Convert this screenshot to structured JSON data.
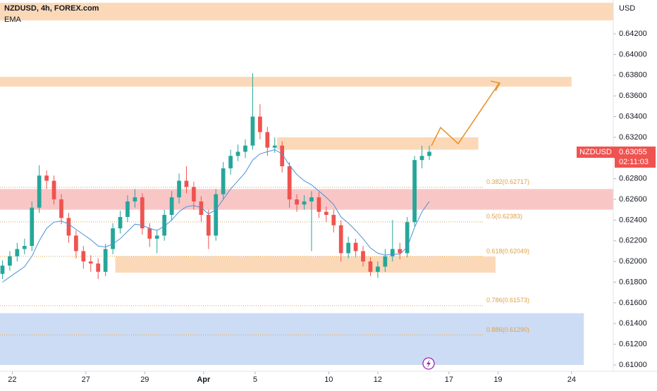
{
  "chart_data": {
    "type": "candlestick",
    "title": "NZDUSD, 4h, FOREX.com",
    "indicator": "EMA",
    "currency": "USD",
    "symbol_label": "NZDUSD",
    "last_price": 0.63055,
    "countdown": "02:11:03",
    "xlim": [
      0,
      250
    ],
    "ylim": [
      0.6095,
      0.645
    ],
    "xticks": [
      {
        "value": 5,
        "label": "22"
      },
      {
        "value": 35,
        "label": "27"
      },
      {
        "value": 59,
        "label": "29"
      },
      {
        "value": 83,
        "label": "Apr"
      },
      {
        "value": 104,
        "label": "5"
      },
      {
        "value": 134,
        "label": "10"
      },
      {
        "value": 154,
        "label": "12"
      },
      {
        "value": 183,
        "label": "17"
      },
      {
        "value": 203,
        "label": "19"
      },
      {
        "value": 233,
        "label": "24"
      }
    ],
    "yticks": [
      {
        "value": 0.61,
        "label": "0.61000"
      },
      {
        "value": 0.612,
        "label": "0.61200"
      },
      {
        "value": 0.614,
        "label": "0.61400"
      },
      {
        "value": 0.616,
        "label": "0.61600"
      },
      {
        "value": 0.618,
        "label": "0.61800"
      },
      {
        "value": 0.62,
        "label": "0.62000"
      },
      {
        "value": 0.622,
        "label": "0.62200"
      },
      {
        "value": 0.624,
        "label": "0.62400"
      },
      {
        "value": 0.626,
        "label": "0.62600"
      },
      {
        "value": 0.628,
        "label": "0.62800"
      },
      {
        "value": 0.63,
        "label": "0.63000"
      },
      {
        "value": 0.632,
        "label": "0.63200"
      },
      {
        "value": 0.634,
        "label": "0.63400"
      },
      {
        "value": 0.636,
        "label": "0.63600"
      },
      {
        "value": 0.638,
        "label": "0.63800"
      },
      {
        "value": 0.64,
        "label": "0.64000"
      },
      {
        "value": 0.642,
        "label": "0.64200"
      }
    ],
    "up_color": "#26a69a",
    "down_color": "#ef5350",
    "ema_color": "#4a90d9",
    "x": [
      1,
      4,
      7,
      10,
      13,
      16,
      19,
      22,
      25,
      28,
      31,
      34,
      37,
      40,
      43,
      46,
      49,
      52,
      55,
      58,
      61,
      64,
      67,
      70,
      73,
      76,
      79,
      82,
      85,
      88,
      91,
      94,
      97,
      100,
      103,
      106,
      109,
      112,
      115,
      118,
      121,
      124,
      127,
      130,
      133,
      136,
      139,
      142,
      145,
      148,
      151,
      154,
      157,
      160,
      163,
      166,
      169,
      172,
      175
    ],
    "open": [
      0.6188,
      0.6196,
      0.6205,
      0.6212,
      0.6215,
      0.6252,
      0.6283,
      0.6278,
      0.626,
      0.6242,
      0.6225,
      0.621,
      0.62,
      0.6198,
      0.619,
      0.6212,
      0.6232,
      0.6243,
      0.6258,
      0.6262,
      0.6232,
      0.6222,
      0.6225,
      0.6245,
      0.6262,
      0.6278,
      0.6272,
      0.6258,
      0.6245,
      0.6225,
      0.6265,
      0.629,
      0.6302,
      0.6306,
      0.6312,
      0.634,
      0.6325,
      0.631,
      0.6312,
      0.6292,
      0.626,
      0.6255,
      0.6258,
      0.6262,
      0.6248,
      0.6245,
      0.6235,
      0.6208,
      0.6218,
      0.621,
      0.62,
      0.619,
      0.6195,
      0.6205,
      0.6212,
      0.6208,
      0.6238,
      0.6298,
      0.6302
    ],
    "high": [
      0.6201,
      0.621,
      0.6218,
      0.6222,
      0.6258,
      0.6293,
      0.6288,
      0.6283,
      0.6265,
      0.6247,
      0.623,
      0.6215,
      0.6206,
      0.6203,
      0.6217,
      0.6237,
      0.6249,
      0.6264,
      0.627,
      0.6266,
      0.6237,
      0.623,
      0.625,
      0.6268,
      0.6285,
      0.6292,
      0.6277,
      0.6263,
      0.625,
      0.627,
      0.6296,
      0.6308,
      0.6313,
      0.6318,
      0.6382,
      0.6352,
      0.633,
      0.632,
      0.6316,
      0.6296,
      0.6265,
      0.6264,
      0.6268,
      0.6267,
      0.6253,
      0.625,
      0.624,
      0.6224,
      0.6222,
      0.6215,
      0.6204,
      0.62,
      0.6212,
      0.624,
      0.6218,
      0.6243,
      0.6302,
      0.6312,
      0.6312
    ],
    "low": [
      0.6183,
      0.6191,
      0.62,
      0.6207,
      0.621,
      0.6247,
      0.627,
      0.6255,
      0.6236,
      0.6218,
      0.6203,
      0.6193,
      0.619,
      0.6183,
      0.6186,
      0.6207,
      0.6227,
      0.6238,
      0.6252,
      0.6226,
      0.6214,
      0.6208,
      0.622,
      0.624,
      0.6256,
      0.6266,
      0.625,
      0.6238,
      0.6212,
      0.622,
      0.626,
      0.6284,
      0.6297,
      0.63,
      0.6308,
      0.6318,
      0.6302,
      0.6305,
      0.6286,
      0.6252,
      0.6248,
      0.625,
      0.621,
      0.6242,
      0.6238,
      0.6228,
      0.62,
      0.6203,
      0.6204,
      0.6195,
      0.6186,
      0.6184,
      0.619,
      0.62,
      0.6202,
      0.6204,
      0.6234,
      0.629,
      0.6298
    ],
    "close": [
      0.6196,
      0.6205,
      0.6212,
      0.6215,
      0.6252,
      0.6283,
      0.6278,
      0.626,
      0.6242,
      0.6225,
      0.621,
      0.62,
      0.6198,
      0.619,
      0.6212,
      0.6232,
      0.6243,
      0.6258,
      0.6262,
      0.6232,
      0.6222,
      0.6225,
      0.6245,
      0.6262,
      0.6278,
      0.6272,
      0.6258,
      0.6245,
      0.6225,
      0.6265,
      0.629,
      0.6302,
      0.6306,
      0.6312,
      0.634,
      0.6325,
      0.631,
      0.6312,
      0.6292,
      0.626,
      0.6255,
      0.6258,
      0.6262,
      0.6248,
      0.6245,
      0.6235,
      0.6208,
      0.6218,
      0.621,
      0.62,
      0.619,
      0.6195,
      0.6205,
      0.6212,
      0.6208,
      0.6238,
      0.6298,
      0.6302,
      0.6306
    ],
    "ema": [
      0.618,
      0.6185,
      0.619,
      0.6195,
      0.6205,
      0.622,
      0.6232,
      0.6238,
      0.6239,
      0.6236,
      0.6231,
      0.6226,
      0.6221,
      0.6215,
      0.6214,
      0.6217,
      0.6222,
      0.6229,
      0.6236,
      0.6235,
      0.6232,
      0.623,
      0.6234,
      0.624,
      0.6248,
      0.6253,
      0.6254,
      0.6252,
      0.6246,
      0.625,
      0.626,
      0.627,
      0.6278,
      0.6286,
      0.6298,
      0.6304,
      0.6306,
      0.6308,
      0.6304,
      0.6293,
      0.6284,
      0.6278,
      0.6274,
      0.6268,
      0.6262,
      0.6255,
      0.6243,
      0.6237,
      0.623,
      0.6222,
      0.6213,
      0.6208,
      0.6206,
      0.6207,
      0.6207,
      0.6214,
      0.6233,
      0.6248,
      0.6258
    ],
    "zones": [
      {
        "low": 0.6433,
        "high": 0.645,
        "x0": 0,
        "x1": 250,
        "color": "#fbd9b8"
      },
      {
        "low": 0.6369,
        "high": 0.63785,
        "x0": 0,
        "x1": 233,
        "color": "#fbd9b8"
      },
      {
        "low": 0.6308,
        "high": 0.632,
        "x0": 113,
        "x1": 195,
        "color": "#fbd9b8"
      },
      {
        "low": 0.625,
        "high": 0.627,
        "x0": 0,
        "x1": 250,
        "color": "#f9c6c6"
      },
      {
        "low": 0.61892,
        "high": 0.62049,
        "x0": 47,
        "x1": 202,
        "color": "#fbd9b8"
      },
      {
        "low": 0.61,
        "high": 0.615,
        "x0": 0,
        "x1": 238,
        "color": "#cddcf5"
      }
    ],
    "fib_levels": [
      {
        "value": 0.62717,
        "label": "0.382(0.62717)"
      },
      {
        "value": 0.62383,
        "label": "0.5(0.62383)"
      },
      {
        "value": 0.62049,
        "label": "0.618(0.62049)"
      },
      {
        "value": 0.61573,
        "label": "0.786(0.61573)"
      },
      {
        "value": 0.6129,
        "label": "0.886(0.61290)"
      }
    ],
    "fib_color": "#e0a040"
  }
}
